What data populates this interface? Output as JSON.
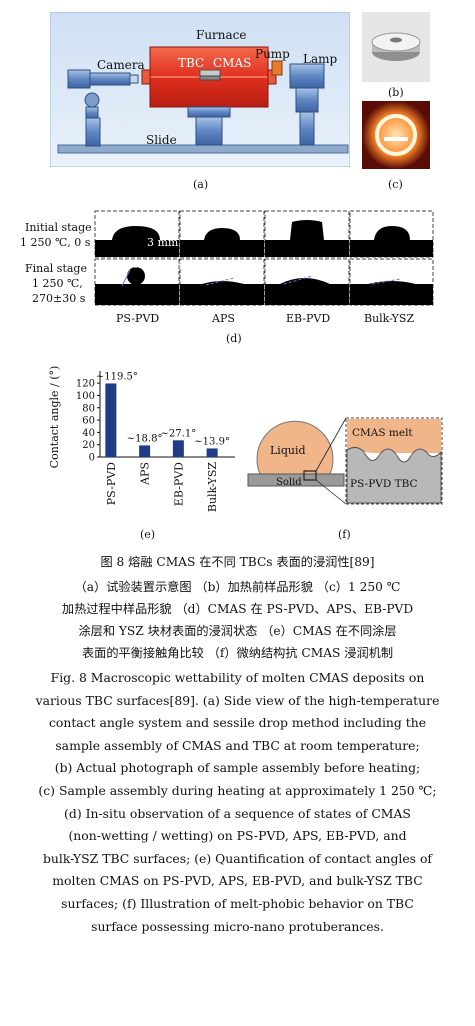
{
  "panel_a": {
    "labels": {
      "furnace": "Furnace",
      "camera": "Camera",
      "tbc": "TBC",
      "cmas": "CMAS",
      "pump": "Pump",
      "lamp": "Lamp",
      "slide": "Slide"
    },
    "tag": "(a)"
  },
  "panel_b": {
    "tag": "(b)"
  },
  "panel_c": {
    "tag": "(c)"
  },
  "panel_d": {
    "initial_stage": "Initial stage",
    "initial_temp": "1 250 ℃, 0 s",
    "final_stage": "Final stage",
    "final_temp": "1 250 ℃,",
    "final_time": "270±30 s",
    "scale_bar": "3 mm",
    "contact_angle_label": "Contact angle",
    "columns": [
      "PS-PVD",
      "APS",
      "EB-PVD",
      "Bulk-YSZ"
    ],
    "tag": "(d)"
  },
  "chart_data": {
    "type": "bar",
    "categories": [
      "PS-PVD",
      "APS",
      "EB-PVD",
      "Bulk-YSZ"
    ],
    "values": [
      119.5,
      18.8,
      27.1,
      13.9
    ],
    "value_labels": [
      "~119.5°",
      "~18.8°",
      "~27.1°",
      "~13.9°"
    ],
    "ylabel": "Contact angle / (°)",
    "ylim": [
      0,
      130
    ],
    "yticks": [
      "0",
      "20",
      "40",
      "60",
      "80",
      "100",
      "120"
    ],
    "color": "#1f3c88",
    "tag": "(e)"
  },
  "panel_f": {
    "liquid": "Liquid",
    "solid": "Solid",
    "cmas_melt": "CMAS melt",
    "pspvd_tbc": "PS-PVD TBC",
    "tag": "(f)"
  },
  "caption": {
    "cn_title": "图 8    熔融 CMAS 在不同 TBCs 表面的浸润性[89]",
    "cn_lines": [
      "（a）试验装置示意图 （b）加热前样品形貌 （c）1 250 ℃",
      "加热过程中样品形貌 （d）CMAS 在 PS-PVD、APS、EB-PVD",
      "涂层和 YSZ 块材表面的浸润状态 （e）CMAS 在不同涂层",
      "表面的平衡接触角比较 （f）微纳结构抗 CMAS 浸润机制"
    ],
    "en_lines": [
      "Fig. 8    Macroscopic wettability of molten CMAS deposits on",
      "various TBC surfaces[89]. (a) Side view of the high-temperature",
      "contact angle system and sessile drop method including the",
      "sample assembly of CMAS and TBC at room temperature;",
      "(b) Actual photograph of sample assembly before heating;",
      "(c) Sample assembly during heating at approximately 1 250 ℃;",
      "(d) In-situ observation of a sequence of states of CMAS",
      "(non-wetting / wetting) on PS-PVD, APS, EB-PVD, and",
      "bulk-YSZ TBC surfaces; (e) Quantification of contact angles of",
      "molten CMAS on PS-PVD, APS, EB-PVD, and bulk-YSZ TBC",
      "surfaces; (f) Illustration of melt-phobic behavior on TBC",
      "surface possessing micro-nano protuberances."
    ]
  }
}
